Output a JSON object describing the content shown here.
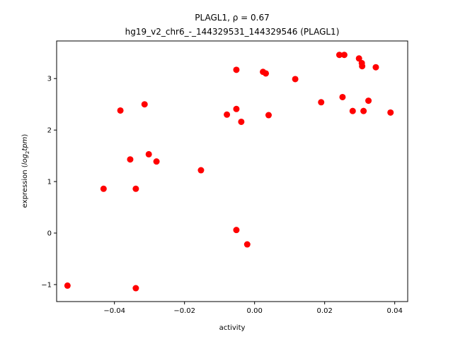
{
  "chart_data": {
    "type": "scatter",
    "title_line1": "PLAGL1, ρ = 0.67",
    "title_line2": "hg19_v2_chr6_-_144329531_144329546 (PLAGL1)",
    "xlabel": "activity",
    "ylabel_prefix": "expression (",
    "ylabel_math": "log",
    "ylabel_sub": "2",
    "ylabel_math2": "tpm",
    "ylabel_suffix": ")",
    "xlim": [
      -0.0565,
      0.0437
    ],
    "ylim": [
      -1.33,
      3.73
    ],
    "xticks": [
      -0.04,
      -0.02,
      0.0,
      0.02,
      0.04
    ],
    "xtick_labels": [
      "−0.04",
      "−0.02",
      "0.00",
      "0.02",
      "0.04"
    ],
    "yticks": [
      -1,
      0,
      1,
      2,
      3
    ],
    "ytick_labels": [
      "−1",
      "0",
      "1",
      "2",
      "3"
    ],
    "marker_color": "#ff0000",
    "grid": false,
    "points": [
      {
        "x": -0.0534,
        "y": -1.02
      },
      {
        "x": -0.0431,
        "y": 0.86
      },
      {
        "x": -0.0383,
        "y": 2.38
      },
      {
        "x": -0.0355,
        "y": 1.43
      },
      {
        "x": -0.0339,
        "y": 0.86
      },
      {
        "x": -0.0339,
        "y": -1.07
      },
      {
        "x": -0.0314,
        "y": 2.5
      },
      {
        "x": -0.0302,
        "y": 1.53
      },
      {
        "x": -0.028,
        "y": 1.39
      },
      {
        "x": -0.0153,
        "y": 1.22
      },
      {
        "x": -0.0079,
        "y": 2.3
      },
      {
        "x": -0.0052,
        "y": 3.17
      },
      {
        "x": -0.0052,
        "y": 2.41
      },
      {
        "x": -0.0052,
        "y": 0.06
      },
      {
        "x": -0.0038,
        "y": 2.16
      },
      {
        "x": -0.0021,
        "y": -0.22
      },
      {
        "x": 0.0024,
        "y": 3.13
      },
      {
        "x": 0.0032,
        "y": 3.1
      },
      {
        "x": 0.004,
        "y": 2.29
      },
      {
        "x": 0.0116,
        "y": 2.99
      },
      {
        "x": 0.019,
        "y": 2.54
      },
      {
        "x": 0.0242,
        "y": 3.46
      },
      {
        "x": 0.0251,
        "y": 2.64
      },
      {
        "x": 0.0256,
        "y": 3.46
      },
      {
        "x": 0.028,
        "y": 2.37
      },
      {
        "x": 0.0298,
        "y": 3.39
      },
      {
        "x": 0.0306,
        "y": 3.3
      },
      {
        "x": 0.0307,
        "y": 3.24
      },
      {
        "x": 0.0311,
        "y": 2.37
      },
      {
        "x": 0.0325,
        "y": 2.57
      },
      {
        "x": 0.0346,
        "y": 3.22
      },
      {
        "x": 0.0388,
        "y": 2.34
      }
    ]
  }
}
